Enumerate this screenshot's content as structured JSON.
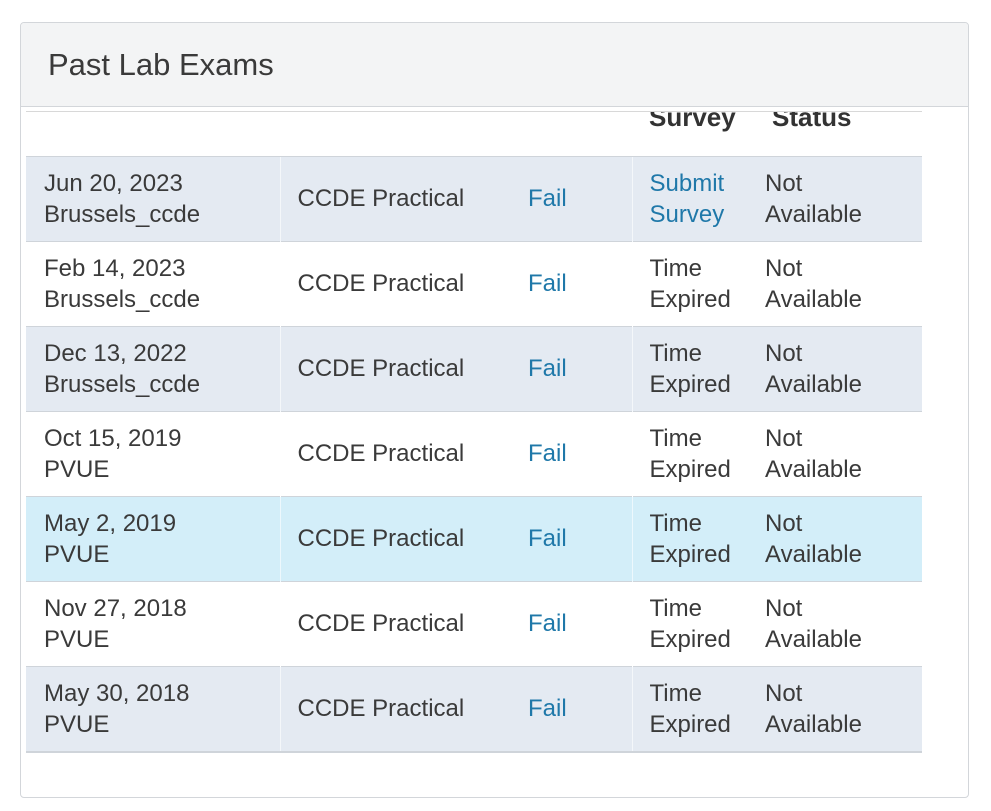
{
  "panel": {
    "title": "Past Lab Exams"
  },
  "table": {
    "headers": {
      "survey": "Survey",
      "status": "Status"
    },
    "rows": [
      {
        "date": "Jun 20, 2023",
        "location": "Brussels_ccde",
        "exam": "CCDE Practical",
        "result": "Fail",
        "survey_line1": "Submit",
        "survey_line2": "Survey",
        "survey_is_link": true,
        "status_line1": "Not",
        "status_line2": "Available",
        "style": "alt"
      },
      {
        "date": "Feb 14, 2023",
        "location": "Brussels_ccde",
        "exam": "CCDE Practical",
        "result": "Fail",
        "survey_line1": "Time",
        "survey_line2": "Expired",
        "survey_is_link": false,
        "status_line1": "Not",
        "status_line2": "Available",
        "style": "plain"
      },
      {
        "date": "Dec 13, 2022",
        "location": "Brussels_ccde",
        "exam": "CCDE Practical",
        "result": "Fail",
        "survey_line1": "Time",
        "survey_line2": "Expired",
        "survey_is_link": false,
        "status_line1": "Not",
        "status_line2": "Available",
        "style": "alt"
      },
      {
        "date": "Oct 15, 2019",
        "location": "PVUE",
        "exam": "CCDE Practical",
        "result": "Fail",
        "survey_line1": "Time",
        "survey_line2": "Expired",
        "survey_is_link": false,
        "status_line1": "Not",
        "status_line2": "Available",
        "style": "plain"
      },
      {
        "date": "May 2, 2019",
        "location": "PVUE",
        "exam": "CCDE Practical",
        "result": "Fail",
        "survey_line1": "Time",
        "survey_line2": "Expired",
        "survey_is_link": false,
        "status_line1": "Not",
        "status_line2": "Available",
        "style": "hl"
      },
      {
        "date": "Nov 27, 2018",
        "location": "PVUE",
        "exam": "CCDE Practical",
        "result": "Fail",
        "survey_line1": "Time",
        "survey_line2": "Expired",
        "survey_is_link": false,
        "status_line1": "Not",
        "status_line2": "Available",
        "style": "plain"
      },
      {
        "date": "May 30, 2018",
        "location": "PVUE",
        "exam": "CCDE Practical",
        "result": "Fail",
        "survey_line1": "Time",
        "survey_line2": "Expired",
        "survey_is_link": false,
        "status_line1": "Not",
        "status_line2": "Available",
        "style": "alt"
      }
    ]
  },
  "colors": {
    "link": "#1f78a9",
    "row_alt": "#e4eaf2",
    "row_highlight": "#d3eef9",
    "heading_bg": "#f3f4f5"
  }
}
